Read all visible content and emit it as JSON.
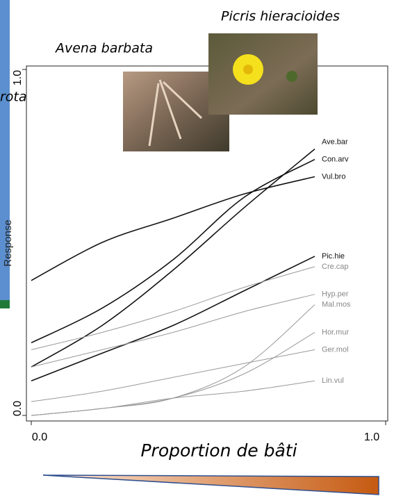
{
  "chart_data": {
    "type": "line",
    "title_left": "Avena barbata",
    "title_right": "Picris hieracioides",
    "cut_label": "rota",
    "xlabel": "Proportion de bâti",
    "ylabel": "Response",
    "x": [
      0,
      0.2,
      0.4,
      0.6,
      0.8
    ],
    "xlim": [
      0,
      1
    ],
    "xticks": [
      {
        "value": 0,
        "label": "0.0"
      },
      {
        "value": 1,
        "label": "1.0"
      }
    ],
    "ylim": [
      0,
      1
    ],
    "yticks": [
      {
        "value": 0,
        "label": "0.0"
      },
      {
        "value": 1,
        "label": "1.0"
      }
    ],
    "series": [
      {
        "name": "Ave.bar",
        "color": "#111111",
        "values": [
          0.14,
          0.26,
          0.42,
          0.6,
          0.77
        ]
      },
      {
        "name": "Con.arv",
        "color": "#111111",
        "values": [
          0.21,
          0.31,
          0.45,
          0.63,
          0.74
        ]
      },
      {
        "name": "Vul.bro",
        "color": "#111111",
        "values": [
          0.39,
          0.5,
          0.57,
          0.64,
          0.69
        ]
      },
      {
        "name": "Pic.hie",
        "color": "#111111",
        "values": [
          0.1,
          0.18,
          0.26,
          0.36,
          0.46
        ]
      },
      {
        "name": "Cre.cap",
        "color": "#999999",
        "values": [
          0.19,
          0.24,
          0.3,
          0.37,
          0.43
        ]
      },
      {
        "name": "Hyp.per",
        "color": "#999999",
        "values": [
          0.14,
          0.19,
          0.24,
          0.3,
          0.35
        ]
      },
      {
        "name": "Mal.mos",
        "color": "#999999",
        "values": [
          0.0,
          0.02,
          0.05,
          0.14,
          0.32
        ]
      },
      {
        "name": "Hor.mur",
        "color": "#999999",
        "values": [
          0.0,
          0.02,
          0.05,
          0.12,
          0.24
        ]
      },
      {
        "name": "Ger.mol",
        "color": "#999999",
        "values": [
          0.04,
          0.07,
          0.11,
          0.15,
          0.19
        ]
      },
      {
        "name": "Lin.vul",
        "color": "#999999",
        "values": [
          0.0,
          0.02,
          0.05,
          0.07,
          0.1
        ]
      }
    ]
  }
}
